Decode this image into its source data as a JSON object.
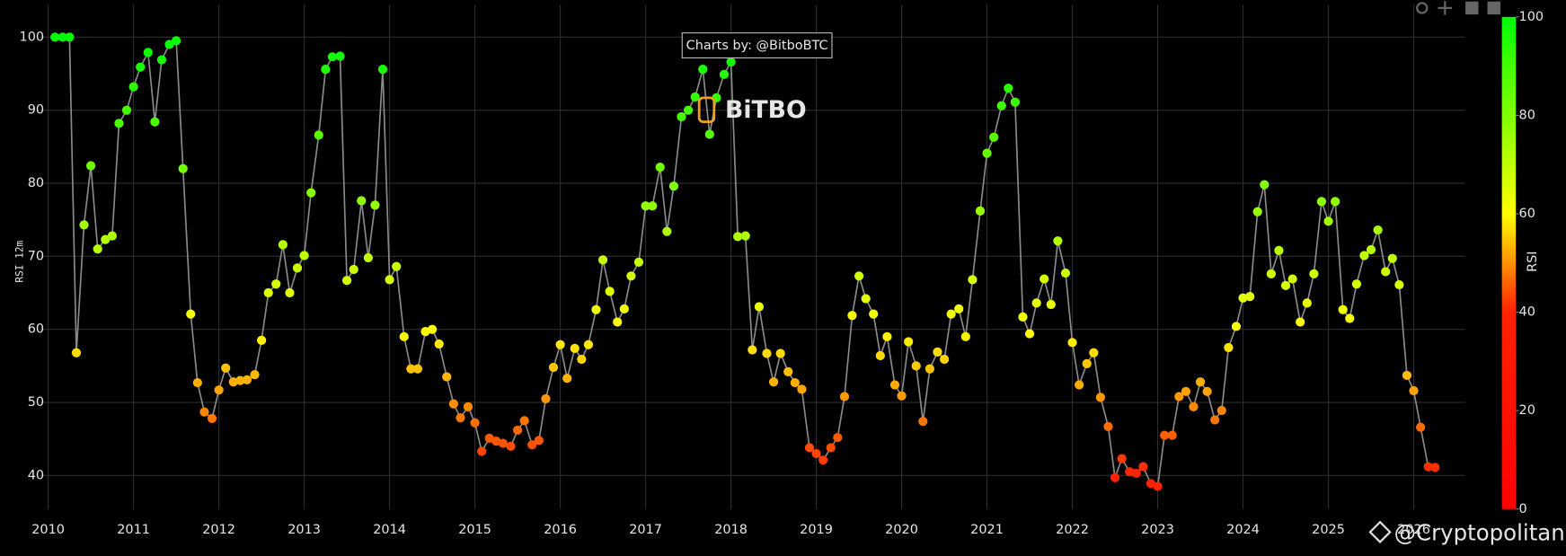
{
  "chart_data": {
    "type": "line-scatter",
    "y_axis_label": "RSI 12m",
    "annotation": "Charts by: @BitboBTC",
    "logo": "BiTBO",
    "watermark": "@Cryptopolitan",
    "line_color": "#8a8a8a",
    "grid": true,
    "xlim": [
      2009.9,
      2026.6
    ],
    "ylim": [
      35.4,
      104.4
    ],
    "xticks": [
      2010,
      2011,
      2012,
      2013,
      2014,
      2015,
      2016,
      2017,
      2018,
      2019,
      2020,
      2021,
      2022,
      2023,
      2024,
      2025,
      2026
    ],
    "yticks": [
      40,
      50,
      60,
      70,
      80,
      90,
      100
    ],
    "colorscale": [
      [
        0,
        "#ff0000"
      ],
      [
        0.4,
        "#ff2200"
      ],
      [
        0.6,
        "#ffff00"
      ],
      [
        1,
        "#00ff00"
      ]
    ],
    "colorbar": {
      "title": "RSI",
      "range": [
        0,
        100
      ],
      "ticks": [
        0,
        20,
        40,
        60,
        80,
        100
      ]
    },
    "x": [
      2010.08,
      2010.17,
      2010.25,
      2010.33,
      2010.42,
      2010.5,
      2010.58,
      2010.67,
      2010.75,
      2010.83,
      2010.92,
      2011,
      2011.08,
      2011.17,
      2011.25,
      2011.33,
      2011.42,
      2011.5,
      2011.58,
      2011.67,
      2011.75,
      2011.83,
      2011.92,
      2012,
      2012.08,
      2012.17,
      2012.25,
      2012.33,
      2012.42,
      2012.5,
      2012.58,
      2012.67,
      2012.75,
      2012.83,
      2012.92,
      2013,
      2013.08,
      2013.17,
      2013.25,
      2013.33,
      2013.42,
      2013.5,
      2013.58,
      2013.67,
      2013.75,
      2013.83,
      2013.92,
      2014,
      2014.08,
      2014.17,
      2014.25,
      2014.33,
      2014.42,
      2014.5,
      2014.58,
      2014.67,
      2014.75,
      2014.83,
      2014.92,
      2015,
      2015.08,
      2015.17,
      2015.25,
      2015.33,
      2015.42,
      2015.5,
      2015.58,
      2015.67,
      2015.75,
      2015.83,
      2015.92,
      2016,
      2016.08,
      2016.17,
      2016.25,
      2016.33,
      2016.42,
      2016.5,
      2016.58,
      2016.67,
      2016.75,
      2016.83,
      2016.92,
      2017,
      2017.08,
      2017.17,
      2017.25,
      2017.33,
      2017.42,
      2017.5,
      2017.58,
      2017.67,
      2017.75,
      2017.83,
      2017.92,
      2018,
      2018.08,
      2018.17,
      2018.25,
      2018.33,
      2018.42,
      2018.5,
      2018.58,
      2018.67,
      2018.75,
      2018.83,
      2018.92,
      2019,
      2019.08,
      2019.17,
      2019.25,
      2019.33,
      2019.42,
      2019.5,
      2019.58,
      2019.67,
      2019.75,
      2019.83,
      2019.92,
      2020,
      2020.08,
      2020.17,
      2020.25,
      2020.33,
      2020.42,
      2020.5,
      2020.58,
      2020.67,
      2020.75,
      2020.83,
      2020.92,
      2021,
      2021.08,
      2021.17,
      2021.25,
      2021.33,
      2021.42,
      2021.5,
      2021.58,
      2021.67,
      2021.75,
      2021.83,
      2021.92,
      2022,
      2022.08,
      2022.17,
      2022.25,
      2022.33,
      2022.42,
      2022.5,
      2022.58,
      2022.67,
      2022.75,
      2022.83,
      2022.92,
      2023,
      2023.08,
      2023.17,
      2023.25,
      2023.33,
      2023.42,
      2023.5,
      2023.58,
      2023.67,
      2023.75,
      2023.83,
      2023.92,
      2024,
      2024.08,
      2024.17,
      2024.25,
      2024.33,
      2024.42,
      2024.5,
      2024.58,
      2024.67,
      2024.75,
      2024.83,
      2024.92,
      2025,
      2025.08,
      2025.17,
      2025.25,
      2025.33,
      2025.42,
      2025.5,
      2025.58,
      2025.67,
      2025.75,
      2025.83,
      2025.92,
      2026,
      2026.08,
      2026.17,
      2026.25
    ],
    "values": [
      100,
      100,
      100,
      56.8,
      74.3,
      82.4,
      71.0,
      72.3,
      72.8,
      88.2,
      90.0,
      93.2,
      95.9,
      97.9,
      88.4,
      96.9,
      99.0,
      99.5,
      82.0,
      62.1,
      52.7,
      48.7,
      47.8,
      51.7,
      54.7,
      52.8,
      53.0,
      53.1,
      53.8,
      58.5,
      65.0,
      66.2,
      71.6,
      65.0,
      68.4,
      70.1,
      78.7,
      86.6,
      95.6,
      97.3,
      97.4,
      66.7,
      68.2,
      77.6,
      69.8,
      77.0,
      95.6,
      66.8,
      68.6,
      59.0,
      54.6,
      54.6,
      59.7,
      60.0,
      58.0,
      53.5,
      49.8,
      47.9,
      49.4,
      47.2,
      43.3,
      45.1,
      44.7,
      44.4,
      44.0,
      46.2,
      47.5,
      44.2,
      44.8,
      50.5,
      54.8,
      57.9,
      53.3,
      57.4,
      55.9,
      57.9,
      62.7,
      69.5,
      65.2,
      61.0,
      62.8,
      67.3,
      69.2,
      76.9,
      76.9,
      82.2,
      73.4,
      79.6,
      89.1,
      90.0,
      91.8,
      95.6,
      86.7,
      91.7,
      94.9,
      96.6,
      72.7,
      72.8,
      57.2,
      63.1,
      56.7,
      52.8,
      56.7,
      54.2,
      52.7,
      51.8,
      43.8,
      43.0,
      42.1,
      43.8,
      45.2,
      50.8,
      61.9,
      67.3,
      64.2,
      62.1,
      56.4,
      59.0,
      52.4,
      50.9,
      58.3,
      55.0,
      47.4,
      54.6,
      56.9,
      55.9,
      62.1,
      62.8,
      59.0,
      66.8,
      76.2,
      84.1,
      86.3,
      90.6,
      93.0,
      91.1,
      61.7,
      59.4,
      63.6,
      66.9,
      63.4,
      72.1,
      67.7,
      58.2,
      52.4,
      55.3,
      56.8,
      50.7,
      46.7,
      39.7,
      42.3,
      40.5,
      40.3,
      41.2,
      38.9,
      38.5,
      45.5,
      45.5,
      50.8,
      51.5,
      49.4,
      52.8,
      51.5,
      47.6,
      48.9,
      57.5,
      60.4,
      64.3,
      64.5,
      76.1,
      79.8,
      67.6,
      70.8,
      66.0,
      66.9,
      61.0,
      63.6,
      67.6,
      77.5,
      74.8,
      77.5,
      62.7,
      61.5,
      66.2,
      70.1,
      70.9,
      73.6,
      67.9,
      69.7,
      66.1,
      53.7,
      51.6,
      46.6,
      41.2,
      41.1
    ]
  }
}
